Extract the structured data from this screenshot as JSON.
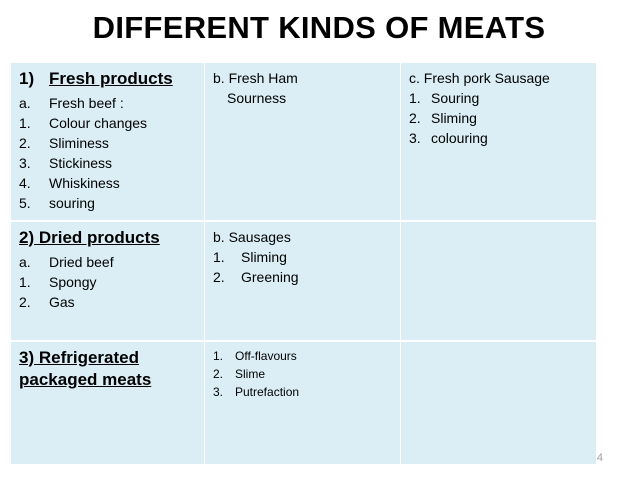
{
  "title": "DIFFERENT KINDS OF MEATS",
  "row1": {
    "c1": {
      "num": "1)",
      "heading": "Fresh products",
      "items": [
        {
          "m": "a.",
          "t": "Fresh beef :"
        },
        {
          "m": "1.",
          "t": "Colour changes"
        },
        {
          "m": "2.",
          "t": "Sliminess"
        },
        {
          "m": "3.",
          "t": "Stickiness"
        },
        {
          "m": "4.",
          "t": "Whiskiness"
        },
        {
          "m": "5.",
          "t": "souring"
        }
      ]
    },
    "c2": {
      "title": "b. Fresh Ham",
      "line": "Sourness"
    },
    "c3": {
      "title": "c. Fresh pork Sausage",
      "items": [
        {
          "m": "1.",
          "t": "Souring"
        },
        {
          "m": "2.",
          "t": "Sliming"
        },
        {
          "m": "3.",
          "t": "colouring"
        }
      ]
    }
  },
  "row2": {
    "c1": {
      "heading": "2) Dried products",
      "items": [
        {
          "m": "a.",
          "t": "Dried beef"
        },
        {
          "m": "1.",
          "t": "Spongy"
        },
        {
          "m": "2.",
          "t": "Gas"
        }
      ]
    },
    "c2": {
      "title": "b. Sausages",
      "items": [
        {
          "m": "1.",
          "t": "Sliming"
        },
        {
          "m": "2.",
          "t": "Greening"
        }
      ]
    }
  },
  "row3": {
    "c1": {
      "heading_line1": "3) Refrigerated",
      "heading_line2": "packaged meats"
    },
    "c2": {
      "items": [
        {
          "m": "1.",
          "t": "Off-flavours"
        },
        {
          "m": "2.",
          "t": "Slime"
        },
        {
          "m": "3.",
          "t": "Putrefaction"
        }
      ]
    }
  },
  "page_number": "4"
}
